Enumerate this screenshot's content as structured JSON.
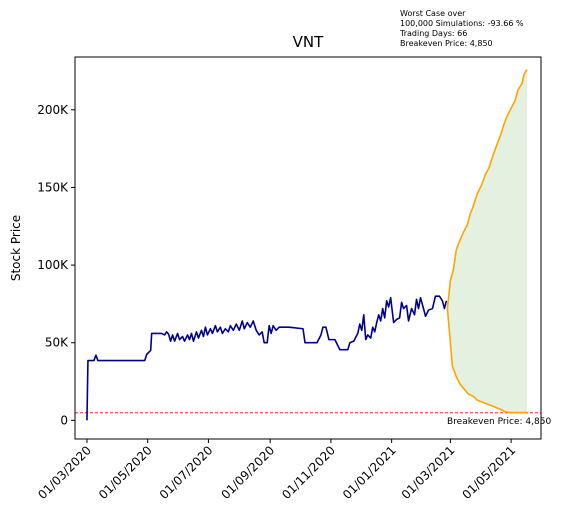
{
  "chart_data": {
    "type": "line",
    "title": "VNT",
    "ylabel": "Stock Price",
    "xlabel": "",
    "ylim": [
      -12000,
      234000
    ],
    "xlim": [
      "2020-02-18",
      "2021-05-31"
    ],
    "y_ticks": [
      {
        "value": 0,
        "label": "0"
      },
      {
        "value": 50000,
        "label": "50K"
      },
      {
        "value": 100000,
        "label": "100K"
      },
      {
        "value": 150000,
        "label": "150K"
      },
      {
        "value": 200000,
        "label": "200K"
      }
    ],
    "x_ticks": [
      {
        "date": "2020-03-01",
        "label": "01/03/2020"
      },
      {
        "date": "2020-05-01",
        "label": "01/05/2020"
      },
      {
        "date": "2020-07-01",
        "label": "01/07/2020"
      },
      {
        "date": "2020-09-01",
        "label": "01/09/2020"
      },
      {
        "date": "2020-11-01",
        "label": "01/11/2020"
      },
      {
        "date": "2021-01-01",
        "label": "01/01/2021"
      },
      {
        "date": "2021-03-01",
        "label": "01/03/2021"
      },
      {
        "date": "2021-05-01",
        "label": "01/05/2021"
      }
    ],
    "annotation_lines": [
      "Worst Case over",
      "100,000 Simulations: -93.66 %",
      "Trading Days: 66",
      "Breakeven Price: 4,850"
    ],
    "breakeven": {
      "value": 4850,
      "label": "Breakeven Price: 4,850",
      "color": "#ff0000"
    },
    "colors": {
      "history": "#00008b",
      "simulation": "#ffa500",
      "band": "#e4f0e0"
    },
    "series": [
      {
        "role": "history",
        "points": [
          [
            "2020-03-01",
            0
          ],
          [
            "2020-03-02",
            38500
          ],
          [
            "2020-03-08",
            38500
          ],
          [
            "2020-03-10",
            42000
          ],
          [
            "2020-03-12",
            38500
          ],
          [
            "2020-04-28",
            38500
          ],
          [
            "2020-04-30",
            42500
          ],
          [
            "2020-05-04",
            45000
          ],
          [
            "2020-05-05",
            56000
          ],
          [
            "2020-05-15",
            56000
          ],
          [
            "2020-05-18",
            55000
          ],
          [
            "2020-05-20",
            57000
          ],
          [
            "2020-05-22",
            55500
          ],
          [
            "2020-05-24",
            51000
          ],
          [
            "2020-05-26",
            55000
          ],
          [
            "2020-05-28",
            51000
          ],
          [
            "2020-05-31",
            56000
          ],
          [
            "2020-06-02",
            52000
          ],
          [
            "2020-06-05",
            54000
          ],
          [
            "2020-06-07",
            51000
          ],
          [
            "2020-06-10",
            55000
          ],
          [
            "2020-06-12",
            52000
          ],
          [
            "2020-06-14",
            56000
          ],
          [
            "2020-06-16",
            51000
          ],
          [
            "2020-06-19",
            57000
          ],
          [
            "2020-06-21",
            53000
          ],
          [
            "2020-06-24",
            58000
          ],
          [
            "2020-06-26",
            54000
          ],
          [
            "2020-06-28",
            60000
          ],
          [
            "2020-06-30",
            55000
          ],
          [
            "2020-07-03",
            59000
          ],
          [
            "2020-07-05",
            56000
          ],
          [
            "2020-07-08",
            61000
          ],
          [
            "2020-07-10",
            57000
          ],
          [
            "2020-07-13",
            60000
          ],
          [
            "2020-07-15",
            56000
          ],
          [
            "2020-07-18",
            59000
          ],
          [
            "2020-07-21",
            57000
          ],
          [
            "2020-07-23",
            61000
          ],
          [
            "2020-07-26",
            58000
          ],
          [
            "2020-07-29",
            62000
          ],
          [
            "2020-08-01",
            58000
          ],
          [
            "2020-08-04",
            64000
          ],
          [
            "2020-08-06",
            59000
          ],
          [
            "2020-08-09",
            63000
          ],
          [
            "2020-08-12",
            60000
          ],
          [
            "2020-08-15",
            64000
          ],
          [
            "2020-08-18",
            58000
          ],
          [
            "2020-08-21",
            55000
          ],
          [
            "2020-08-24",
            57000
          ],
          [
            "2020-08-26",
            50000
          ],
          [
            "2020-08-29",
            50000
          ],
          [
            "2020-08-31",
            61000
          ],
          [
            "2020-09-02",
            56000
          ],
          [
            "2020-09-04",
            61000
          ],
          [
            "2020-09-07",
            58000
          ],
          [
            "2020-09-10",
            60000
          ],
          [
            "2020-09-20",
            60000
          ],
          [
            "2020-10-04",
            59000
          ],
          [
            "2020-10-06",
            50000
          ],
          [
            "2020-10-18",
            50000
          ],
          [
            "2020-10-22",
            55000
          ],
          [
            "2020-10-24",
            60000
          ],
          [
            "2020-10-27",
            60000
          ],
          [
            "2020-10-30",
            52000
          ],
          [
            "2020-11-05",
            52000
          ],
          [
            "2020-11-10",
            45500
          ],
          [
            "2020-11-18",
            45500
          ],
          [
            "2020-11-20",
            50000
          ],
          [
            "2020-11-24",
            51000
          ],
          [
            "2020-11-28",
            56000
          ],
          [
            "2020-11-30",
            62000
          ],
          [
            "2020-12-02",
            58000
          ],
          [
            "2020-12-04",
            68000
          ],
          [
            "2020-12-06",
            52000
          ],
          [
            "2020-12-08",
            55000
          ],
          [
            "2020-12-11",
            53000
          ],
          [
            "2020-12-13",
            60000
          ],
          [
            "2020-12-15",
            57000
          ],
          [
            "2020-12-17",
            63000
          ],
          [
            "2020-12-19",
            68000
          ],
          [
            "2020-12-21",
            64000
          ],
          [
            "2020-12-23",
            72000
          ],
          [
            "2020-12-25",
            66000
          ],
          [
            "2020-12-27",
            77000
          ],
          [
            "2020-12-29",
            73000
          ],
          [
            "2020-12-31",
            79000
          ],
          [
            "2021-01-03",
            63000
          ],
          [
            "2021-01-06",
            65000
          ],
          [
            "2021-01-09",
            66000
          ],
          [
            "2021-01-11",
            76000
          ],
          [
            "2021-01-13",
            72000
          ],
          [
            "2021-01-16",
            74000
          ],
          [
            "2021-01-18",
            64000
          ],
          [
            "2021-01-21",
            72000
          ],
          [
            "2021-01-24",
            68000
          ],
          [
            "2021-01-26",
            78000
          ],
          [
            "2021-01-28",
            72000
          ],
          [
            "2021-01-30",
            79000
          ],
          [
            "2021-02-02",
            72000
          ],
          [
            "2021-02-04",
            67000
          ],
          [
            "2021-02-07",
            71000
          ],
          [
            "2021-02-11",
            72000
          ],
          [
            "2021-02-14",
            80000
          ],
          [
            "2021-02-18",
            80000
          ],
          [
            "2021-02-21",
            77000
          ],
          [
            "2021-02-23",
            72000
          ],
          [
            "2021-02-25",
            77000
          ]
        ]
      },
      {
        "role": "simulation-upper",
        "points": [
          [
            "2021-02-26",
            72000
          ],
          [
            "2021-03-01",
            90000
          ],
          [
            "2021-03-04",
            97000
          ],
          [
            "2021-03-07",
            110000
          ],
          [
            "2021-03-10",
            115000
          ],
          [
            "2021-03-14",
            121000
          ],
          [
            "2021-03-18",
            126000
          ],
          [
            "2021-03-21",
            133000
          ],
          [
            "2021-03-24",
            138000
          ],
          [
            "2021-03-28",
            146000
          ],
          [
            "2021-04-01",
            151000
          ],
          [
            "2021-04-05",
            158000
          ],
          [
            "2021-04-09",
            163000
          ],
          [
            "2021-04-13",
            171000
          ],
          [
            "2021-04-17",
            178000
          ],
          [
            "2021-04-20",
            183000
          ],
          [
            "2021-04-24",
            191000
          ],
          [
            "2021-04-27",
            196000
          ],
          [
            "2021-05-01",
            201000
          ],
          [
            "2021-05-05",
            206000
          ],
          [
            "2021-05-08",
            213000
          ],
          [
            "2021-05-12",
            217000
          ],
          [
            "2021-05-14",
            223000
          ],
          [
            "2021-05-17",
            226000
          ]
        ]
      },
      {
        "role": "simulation-lower",
        "points": [
          [
            "2021-02-26",
            72000
          ],
          [
            "2021-03-01",
            50000
          ],
          [
            "2021-03-03",
            35000
          ],
          [
            "2021-03-07",
            28000
          ],
          [
            "2021-03-11",
            23000
          ],
          [
            "2021-03-15",
            20000
          ],
          [
            "2021-03-19",
            17000
          ],
          [
            "2021-03-24",
            15500
          ],
          [
            "2021-03-28",
            13000
          ],
          [
            "2021-04-01",
            12000
          ],
          [
            "2021-04-05",
            11000
          ],
          [
            "2021-04-09",
            10000
          ],
          [
            "2021-04-13",
            9000
          ],
          [
            "2021-04-17",
            8000
          ],
          [
            "2021-04-21",
            7000
          ],
          [
            "2021-04-25",
            5500
          ],
          [
            "2021-04-30",
            5000
          ],
          [
            "2021-05-05",
            5000
          ],
          [
            "2021-05-10",
            5000
          ],
          [
            "2021-05-17",
            5000
          ]
        ]
      }
    ]
  }
}
